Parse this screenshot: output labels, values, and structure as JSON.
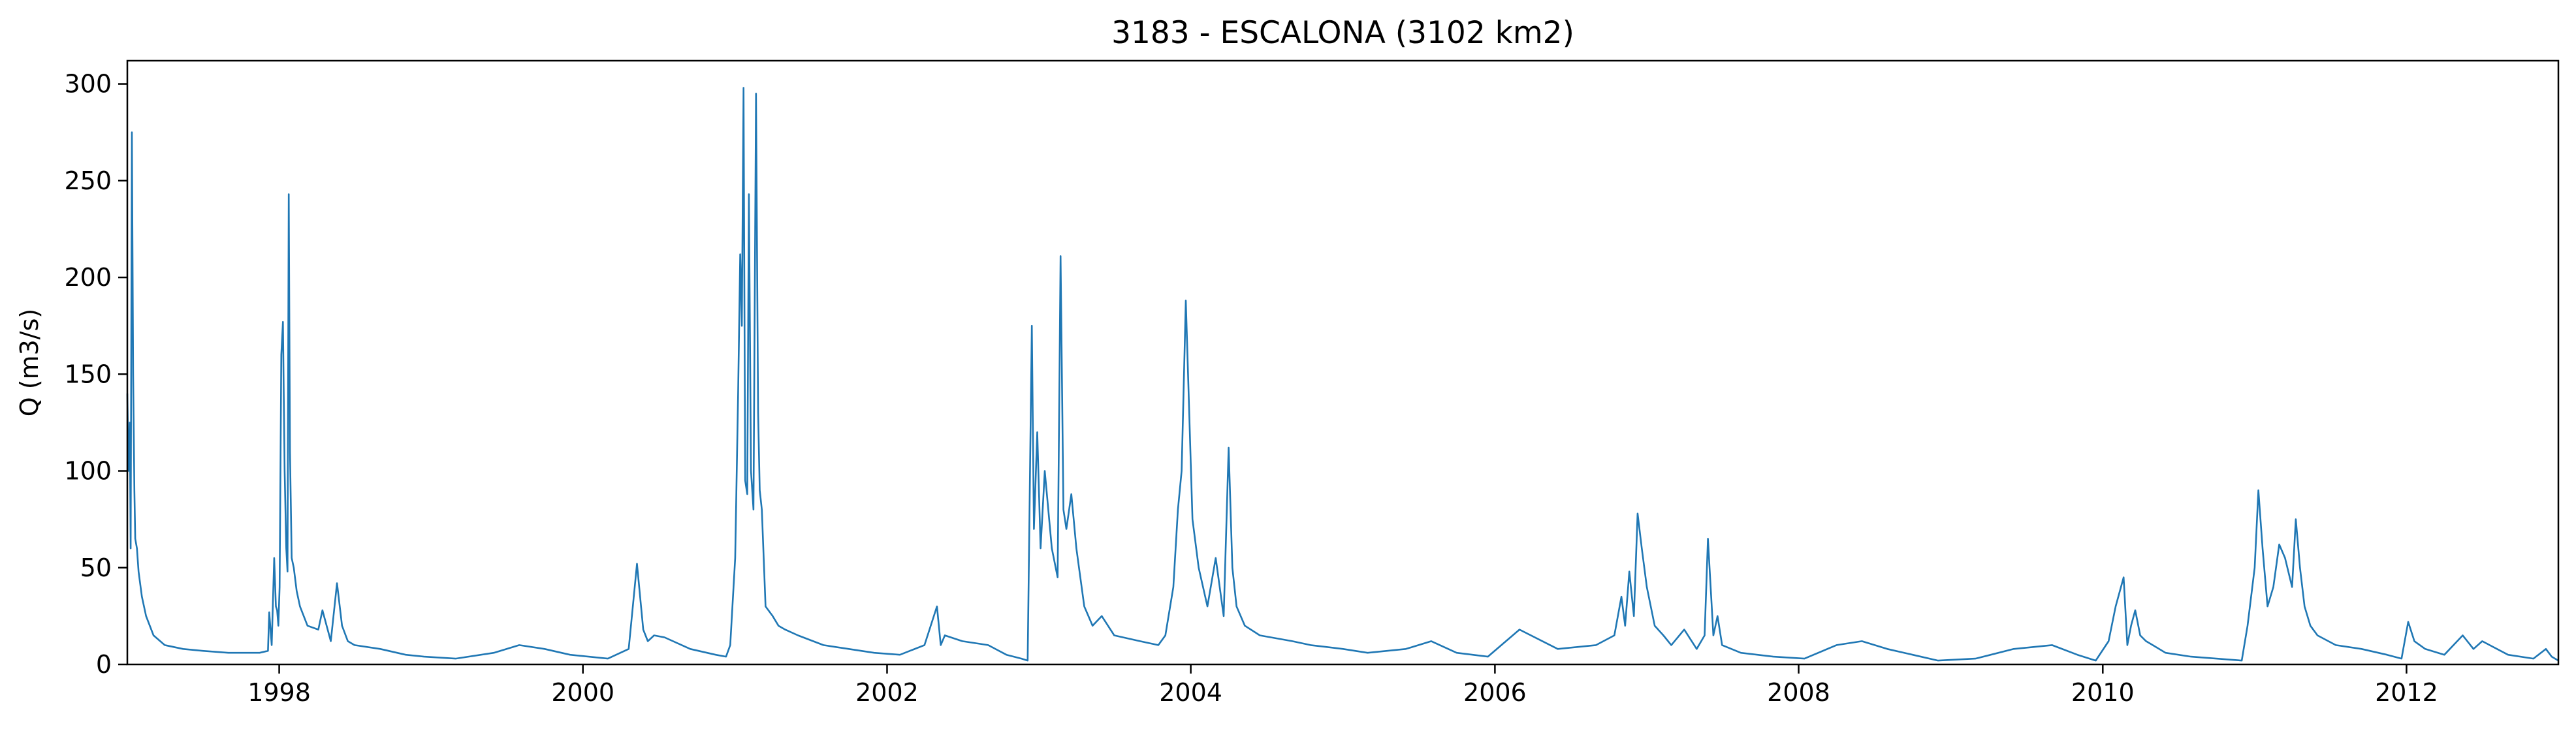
{
  "chart_data": {
    "type": "line",
    "title": "3183 - ESCALONA (3102 km2)",
    "xlabel": "",
    "ylabel": "Q (m3/s)",
    "ylim": [
      0,
      312
    ],
    "xlim": [
      "1997-01-01",
      "2012-12-31"
    ],
    "grid": false,
    "legend": "none",
    "color": "#1f77b4",
    "xticks": [
      {
        "value": "1998-01-01",
        "label": "1998"
      },
      {
        "value": "2000-01-01",
        "label": "2000"
      },
      {
        "value": "2002-01-01",
        "label": "2002"
      },
      {
        "value": "2004-01-01",
        "label": "2004"
      },
      {
        "value": "2006-01-01",
        "label": "2006"
      },
      {
        "value": "2008-01-01",
        "label": "2008"
      },
      {
        "value": "2010-01-01",
        "label": "2010"
      },
      {
        "value": "2012-01-01",
        "label": "2012"
      }
    ],
    "yticks": [
      {
        "value": 0,
        "label": "0"
      },
      {
        "value": 50,
        "label": "50"
      },
      {
        "value": 100,
        "label": "100"
      },
      {
        "value": 150,
        "label": "150"
      },
      {
        "value": 200,
        "label": "200"
      },
      {
        "value": 250,
        "label": "250"
      },
      {
        "value": 300,
        "label": "300"
      }
    ],
    "series": [
      {
        "x": [
          "1997-01-01",
          "1997-01-04",
          "1997-01-07",
          "1997-01-09",
          "1997-01-12",
          "1997-01-15",
          "1997-01-18",
          "1997-01-20",
          "1997-01-24",
          "1997-01-28",
          "1997-02-05",
          "1997-02-15",
          "1997-03-05",
          "1997-04-01",
          "1997-05-15",
          "1997-07-01",
          "1997-09-01",
          "1997-11-15",
          "1997-12-05",
          "1997-12-08",
          "1997-12-14",
          "1997-12-20",
          "1997-12-24",
          "1997-12-27",
          "1997-12-30",
          "1998-01-02",
          "1998-01-06",
          "1998-01-10",
          "1998-01-14",
          "1998-01-18",
          "1998-01-21",
          "1998-01-24",
          "1998-01-27",
          "1998-01-31",
          "1998-02-05",
          "1998-02-12",
          "1998-02-20",
          "1998-03-10",
          "1998-04-05",
          "1998-04-15",
          "1998-05-05",
          "1998-05-20",
          "1998-06-01",
          "1998-06-15",
          "1998-07-01",
          "1998-09-01",
          "1998-11-01",
          "1998-12-15",
          "1999-03-01",
          "1999-06-01",
          "1999-08-01",
          "1999-10-01",
          "1999-12-01",
          "2000-03-01",
          "2000-04-20",
          "2000-05-10",
          "2000-05-25",
          "2000-06-05",
          "2000-06-20",
          "2000-07-15",
          "2000-09-15",
          "2000-11-15",
          "2000-12-10",
          "2000-12-20",
          "2001-01-01",
          "2001-01-08",
          "2001-01-13",
          "2001-01-17",
          "2001-01-21",
          "2001-01-25",
          "2001-01-30",
          "2001-02-03",
          "2001-02-08",
          "2001-02-14",
          "2001-02-20",
          "2001-02-25",
          "2001-03-01",
          "2001-03-06",
          "2001-03-15",
          "2001-04-01",
          "2001-04-15",
          "2001-05-01",
          "2001-06-01",
          "2001-08-01",
          "2001-10-01",
          "2001-12-01",
          "2002-02-01",
          "2002-04-01",
          "2002-05-01",
          "2002-05-10",
          "2002-05-20",
          "2002-07-01",
          "2002-09-01",
          "2002-10-15",
          "2002-11-20",
          "2002-12-05",
          "2002-12-15",
          "2002-12-20",
          "2002-12-28",
          "2003-01-05",
          "2003-01-15",
          "2003-02-01",
          "2003-02-15",
          "2003-02-22",
          "2003-03-01",
          "2003-03-08",
          "2003-03-20",
          "2003-04-01",
          "2003-04-20",
          "2003-05-10",
          "2003-06-01",
          "2003-07-01",
          "2003-09-01",
          "2003-10-15",
          "2003-11-01",
          "2003-11-20",
          "2003-12-01",
          "2003-12-10",
          "2003-12-20",
          "2004-01-05",
          "2004-01-20",
          "2004-02-10",
          "2004-03-01",
          "2004-03-20",
          "2004-04-01",
          "2004-04-10",
          "2004-04-20",
          "2004-05-10",
          "2004-06-15",
          "2004-09-01",
          "2004-10-15",
          "2005-01-01",
          "2005-03-01",
          "2005-06-01",
          "2005-08-01",
          "2005-10-01",
          "2005-12-15",
          "2006-03-01",
          "2006-06-01",
          "2006-09-01",
          "2006-10-15",
          "2006-11-01",
          "2006-11-10",
          "2006-11-20",
          "2006-12-01",
          "2006-12-10",
          "2006-12-20",
          "2007-01-01",
          "2007-01-20",
          "2007-02-10",
          "2007-03-01",
          "2007-04-01",
          "2007-05-01",
          "2007-05-20",
          "2007-05-28",
          "2007-06-10",
          "2007-06-20",
          "2007-07-01",
          "2007-08-15",
          "2007-11-01",
          "2008-01-15",
          "2008-04-01",
          "2008-06-01",
          "2008-08-01",
          "2008-10-01",
          "2008-12-01",
          "2009-03-01",
          "2009-06-01",
          "2009-09-01",
          "2009-11-01",
          "2009-12-15",
          "2010-01-15",
          "2010-02-01",
          "2010-02-20",
          "2010-03-01",
          "2010-03-10",
          "2010-03-20",
          "2010-04-01",
          "2010-04-15",
          "2010-05-01",
          "2010-06-01",
          "2010-08-01",
          "2010-10-01",
          "2010-12-01",
          "2010-12-15",
          "2011-01-01",
          "2011-01-10",
          "2011-01-20",
          "2011-02-01",
          "2011-02-15",
          "2011-03-01",
          "2011-03-15",
          "2011-04-01",
          "2011-04-10",
          "2011-04-20",
          "2011-05-01",
          "2011-05-15",
          "2011-06-01",
          "2011-07-15",
          "2011-09-15",
          "2011-11-15",
          "2011-12-20",
          "2012-01-05",
          "2012-01-20",
          "2012-02-15",
          "2012-04-01",
          "2012-05-15",
          "2012-06-10",
          "2012-07-01",
          "2012-09-01",
          "2012-11-01",
          "2012-12-01",
          "2012-12-15",
          "2012-12-31"
        ],
        "y": [
          140,
          100,
          125,
          60,
          275,
          150,
          90,
          65,
          60,
          48,
          35,
          25,
          15,
          10,
          8,
          7,
          6,
          6,
          7,
          27,
          10,
          55,
          30,
          28,
          20,
          40,
          160,
          177,
          100,
          60,
          48,
          243,
          110,
          55,
          50,
          38,
          30,
          20,
          18,
          28,
          12,
          42,
          20,
          12,
          10,
          8,
          5,
          4,
          3,
          6,
          10,
          8,
          5,
          3,
          8,
          52,
          18,
          12,
          15,
          14,
          8,
          5,
          4,
          10,
          55,
          140,
          212,
          175,
          298,
          95,
          88,
          243,
          100,
          80,
          295,
          130,
          90,
          80,
          30,
          25,
          20,
          18,
          15,
          10,
          8,
          6,
          5,
          10,
          30,
          10,
          15,
          12,
          10,
          5,
          3,
          2,
          175,
          70,
          120,
          60,
          100,
          60,
          45,
          211,
          80,
          70,
          88,
          60,
          30,
          20,
          25,
          15,
          12,
          10,
          15,
          40,
          80,
          100,
          188,
          75,
          50,
          30,
          55,
          25,
          112,
          50,
          30,
          20,
          15,
          12,
          10,
          8,
          6,
          8,
          12,
          6,
          4,
          18,
          8,
          10,
          15,
          35,
          20,
          48,
          25,
          78,
          60,
          40,
          20,
          15,
          10,
          18,
          8,
          15,
          65,
          15,
          25,
          10,
          6,
          4,
          3,
          10,
          12,
          8,
          5,
          2,
          3,
          8,
          10,
          5,
          2,
          12,
          30,
          45,
          10,
          20,
          28,
          15,
          12,
          10,
          6,
          4,
          3,
          2,
          20,
          50,
          90,
          60,
          30,
          40,
          62,
          55,
          40,
          75,
          50,
          30,
          20,
          15,
          10,
          8,
          5,
          3,
          22,
          12,
          8,
          5,
          15,
          8,
          12,
          5,
          3,
          8,
          4,
          2
        ]
      }
    ]
  }
}
